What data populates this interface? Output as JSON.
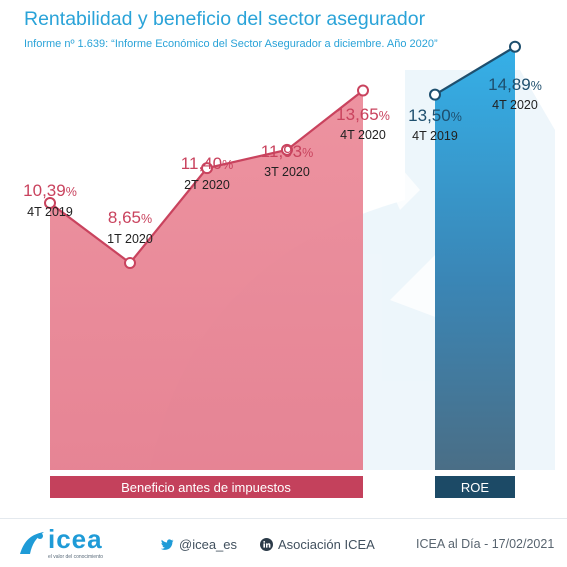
{
  "header": {
    "title": "Rentabilidad y beneficio del sector asegurador",
    "subtitle": "Informe nº 1.639: “Informe Económico del Sector Asegurador a diciembre. Año 2020”"
  },
  "chart_data": [
    {
      "type": "area",
      "name": "Beneficio antes de impuestos",
      "category_label": "Beneficio antes de impuestos",
      "categories": [
        "4T 2019",
        "1T 2020",
        "2T 2020",
        "3T 2020",
        "4T 2020"
      ],
      "values": [
        10.39,
        8.65,
        11.4,
        11.93,
        13.65
      ],
      "value_labels": [
        "10,39",
        "8,65",
        "11,40",
        "11,93",
        "13,65"
      ],
      "unit": "%",
      "color": "#c9435e",
      "fill": "#ec8f9d"
    },
    {
      "type": "area",
      "name": "ROE",
      "category_label": "ROE",
      "categories": [
        "4T 2019",
        "4T 2020"
      ],
      "values": [
        13.5,
        14.89
      ],
      "value_labels": [
        "13,50",
        "14,89"
      ],
      "unit": "%",
      "color": "#1e4f6e",
      "fill": "#3aa6dd"
    }
  ],
  "footer": {
    "logo": "icea",
    "logo_tagline": "el valor del conocimiento",
    "twitter": "@icea_es",
    "linkedin": "Asociación ICEA",
    "date": "ICEA al Día - 17/02/2021"
  },
  "colors": {
    "title": "#2aa3d8",
    "benefit_line": "#c9435e",
    "benefit_label": "#c9435e",
    "roe_line": "#1e4f6e",
    "roe_label": "#1e4f6e",
    "benefit_bar": "#c4415c",
    "roe_bar": "#1c4a66"
  }
}
